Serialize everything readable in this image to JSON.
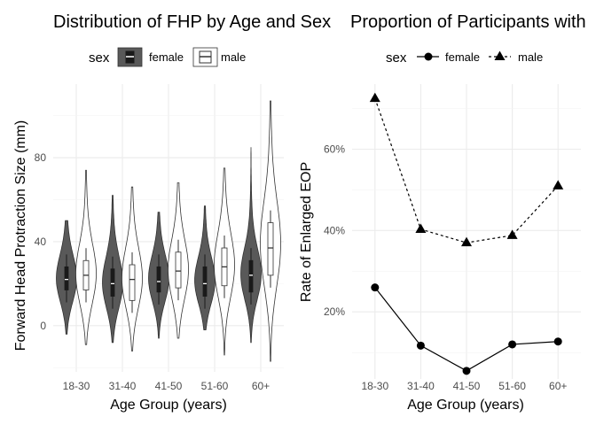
{
  "chart_data": [
    {
      "type": "violin",
      "title": "Distribution of FHP by Age and Sex",
      "xlabel": "Age Group (years)",
      "ylabel": "Forward Head Protraction Size (mm)",
      "categories": [
        "18-30",
        "31-40",
        "41-50",
        "51-60",
        "60+"
      ],
      "ylim": [
        -22,
        115
      ],
      "yticks": [
        "0",
        "40",
        "80"
      ],
      "grid": true,
      "legend": {
        "title": "sex",
        "position": "top",
        "items": [
          "female",
          "male"
        ]
      },
      "series": [
        {
          "name": "female",
          "fill": "#595959",
          "min": [
            -4,
            -8,
            -6,
            -2,
            -8
          ],
          "max": [
            50,
            62,
            54,
            57,
            85
          ],
          "q1": [
            17,
            14,
            16,
            14,
            16
          ],
          "median": [
            22,
            20,
            21,
            20,
            24
          ],
          "q3": [
            28,
            27,
            28,
            28,
            31
          ],
          "mode": [
            22,
            20,
            22,
            21,
            24
          ],
          "spread": [
            11,
            12,
            11,
            11,
            12
          ]
        },
        {
          "name": "male",
          "fill": "#ffffff",
          "min": [
            -9,
            -12,
            -6,
            -14,
            -17
          ],
          "max": [
            74,
            66,
            68,
            75,
            107
          ],
          "q1": [
            17,
            12,
            18,
            19,
            24
          ],
          "median": [
            24,
            22,
            26,
            28,
            37
          ],
          "q3": [
            31,
            29,
            35,
            37,
            49
          ],
          "mode": [
            24,
            22,
            26,
            28,
            38
          ],
          "spread": [
            14,
            14,
            14,
            15,
            20
          ]
        }
      ]
    },
    {
      "type": "line",
      "title": "Proportion of Participants with",
      "xlabel": "Age Group (years)",
      "ylabel": "Rate of Enlarged EOP",
      "categories": [
        "18-30",
        "31-40",
        "41-50",
        "51-60",
        "60+"
      ],
      "ylim": [
        0.035,
        0.76
      ],
      "yticks": [
        "20%",
        "40%",
        "60%"
      ],
      "grid": true,
      "legend": {
        "title": "sex",
        "position": "top",
        "items": [
          "female",
          "male"
        ]
      },
      "series": [
        {
          "name": "female",
          "marker": "circle",
          "line": "solid",
          "values": [
            0.26,
            0.117,
            0.055,
            0.12,
            0.127
          ]
        },
        {
          "name": "male",
          "marker": "triangle",
          "line": "dashed",
          "values": [
            0.725,
            0.403,
            0.37,
            0.388,
            0.51
          ]
        }
      ]
    }
  ]
}
